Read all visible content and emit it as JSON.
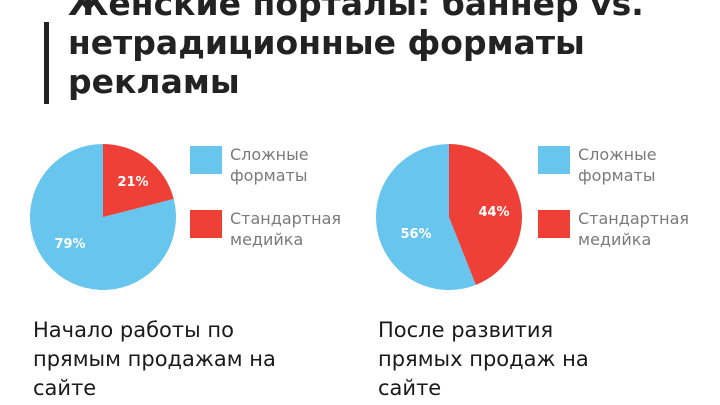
{
  "slide": {
    "title_lines": [
      "Женские порталы: баннер vs.",
      "нетрадиционные форматы",
      "рекламы"
    ]
  },
  "colors": {
    "complex": "#67c5ee",
    "standard": "#ee4036"
  },
  "chart_data": [
    {
      "type": "pie",
      "title": "Начало работы по прямым продажам на сайте",
      "caption_lines": [
        "Начало работы по",
        "прямым продажам на",
        "сайте"
      ],
      "slices": [
        {
          "label": "Сложные форматы",
          "value": 79,
          "value_label": "79%",
          "color": "#67c5ee"
        },
        {
          "label": "Стандартная медийка",
          "value": 21,
          "value_label": "21%",
          "color": "#ee4036"
        }
      ],
      "legend": [
        {
          "line1": "Сложные",
          "line2": "форматы"
        },
        {
          "line1": "Стандартная",
          "line2": "медийка"
        }
      ],
      "legend_position": "right"
    },
    {
      "type": "pie",
      "title": "После развития прямых продаж на сайте",
      "caption_lines": [
        "После развития",
        "прямых продаж на",
        "сайте"
      ],
      "slices": [
        {
          "label": "Сложные форматы",
          "value": 56,
          "value_label": "56%",
          "color": "#67c5ee"
        },
        {
          "label": "Стандартная медийка",
          "value": 44,
          "value_label": "44%",
          "color": "#ee4036"
        }
      ],
      "legend": [
        {
          "line1": "Сложные",
          "line2": "форматы"
        },
        {
          "line1": "Стандартная",
          "line2": "медийка"
        }
      ],
      "legend_position": "right"
    }
  ]
}
